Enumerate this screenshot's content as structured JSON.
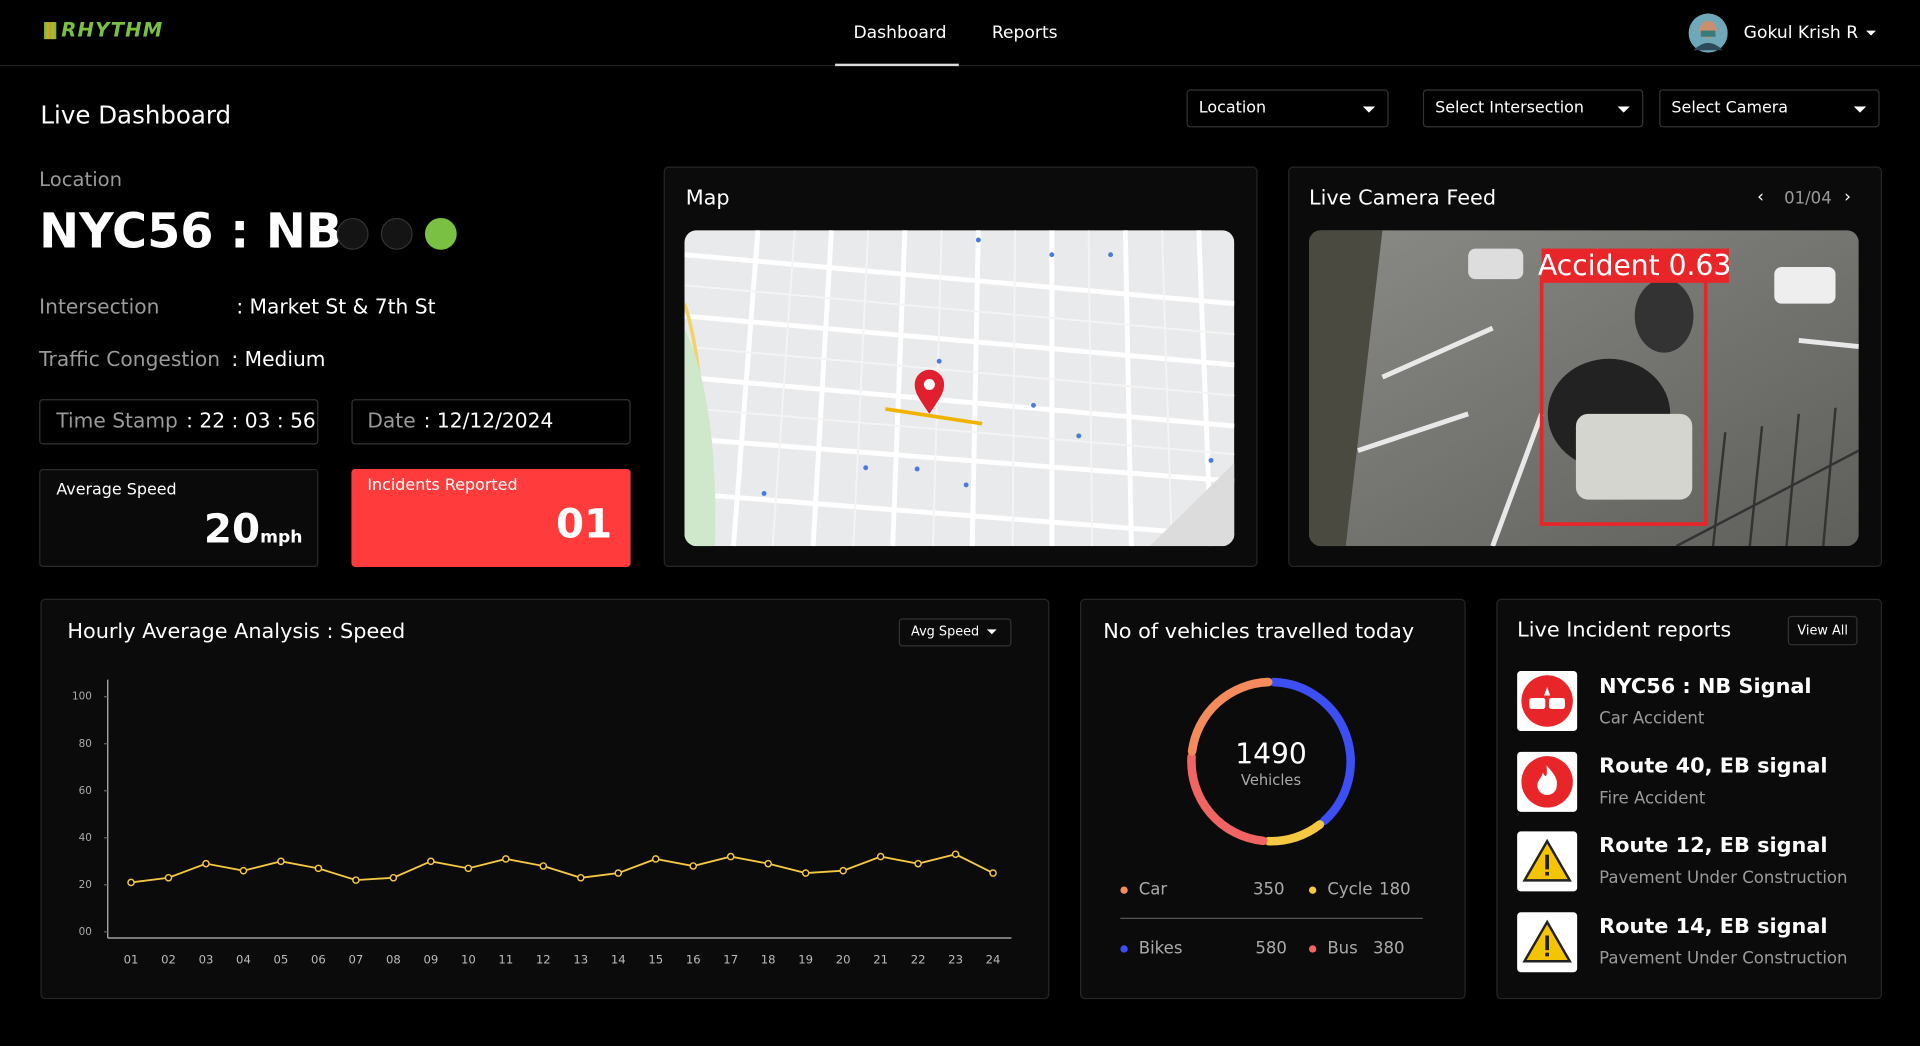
{
  "header": {
    "logo": "RHYTHM",
    "nav": [
      "Dashboard",
      "Reports"
    ],
    "user": "Gokul Krish R"
  },
  "page_title": "Live Dashboard",
  "filters": [
    "Location",
    "Select Intersection",
    "Select Camera"
  ],
  "location": {
    "label": "Location",
    "name": "NYC56 : NB",
    "intersection_label": "Intersection",
    "intersection": ": Market St & 7th St",
    "congestion_label": "Traffic Congestion",
    "congestion": ": Medium",
    "timestamp_label": "Time Stamp",
    "timestamp": ": 22 : 03 : 56",
    "date_label": "Date",
    "date": ": 12/12/2024"
  },
  "average_speed": {
    "label": "Average Speed",
    "value": 20,
    "unit": "mph"
  },
  "incidents": {
    "label": "Incidents Reported",
    "value": "01"
  },
  "map": {
    "title": "Map"
  },
  "camera": {
    "title": "Live Camera Feed",
    "counter": "01/04",
    "detection": "Accident 0.63"
  },
  "chart_data": [
    {
      "type": "line",
      "title": "Hourly Average Analysis : Speed",
      "selector": "Avg Speed",
      "categories": [
        "01",
        "02",
        "03",
        "04",
        "05",
        "06",
        "07",
        "08",
        "09",
        "10",
        "11",
        "12",
        "13",
        "14",
        "15",
        "16",
        "17",
        "18",
        "19",
        "20",
        "21",
        "22",
        "23",
        "24"
      ],
      "values": [
        21,
        23,
        29,
        26,
        30,
        27,
        22,
        23,
        30,
        27,
        31,
        28,
        23,
        25,
        31,
        28,
        32,
        29,
        25,
        26,
        32,
        29,
        33,
        25
      ],
      "color": "#f5c842",
      "ylim": [
        0,
        100
      ],
      "yticks": [
        {
          "value": 0,
          "label": "00"
        },
        20,
        40,
        60,
        80,
        100
      ]
    },
    {
      "type": "donut",
      "title": "No of vehicles travelled today",
      "total": 1490,
      "total_label": "Vehicles",
      "categories": [
        "Bikes",
        "Cycle",
        "Bus",
        "Car"
      ],
      "values": [
        580,
        180,
        380,
        350
      ],
      "colors": [
        "#3d4ef5",
        "#f5c842",
        "#f06464",
        "#f58a5a"
      ]
    }
  ],
  "incident_reports": {
    "title": "Live Incident reports",
    "button": "View All",
    "items": [
      {
        "title": "NYC56 : NB Signal",
        "subtitle": "Car Accident"
      },
      {
        "title": "Route 40, EB signal",
        "subtitle": "Fire Accident"
      },
      {
        "title": "Route 12, EB signal",
        "subtitle": "Pavement Under Construction"
      },
      {
        "title": "Route 14, EB signal",
        "subtitle": "Pavement Under Construction"
      }
    ]
  }
}
